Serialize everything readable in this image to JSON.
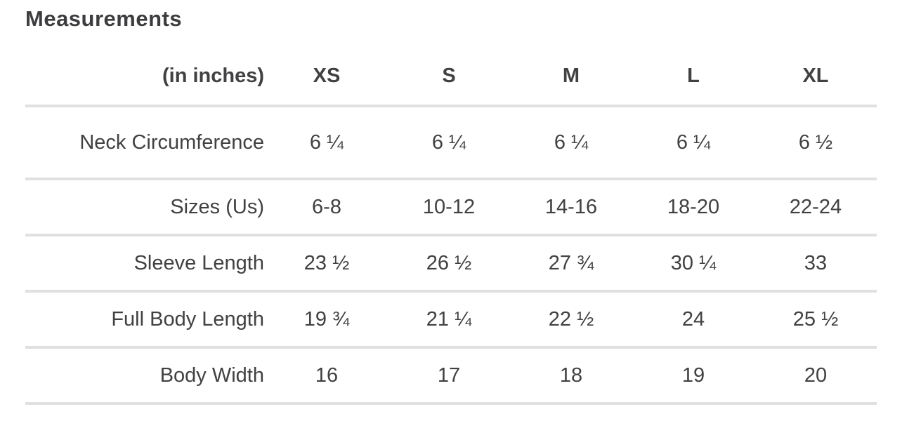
{
  "chart_data": {
    "type": "table",
    "title": "Measurements",
    "unit_label": "(in inches)",
    "columns": [
      "XS",
      "S",
      "M",
      "L",
      "XL"
    ],
    "rows": [
      {
        "label": "Neck Circumference",
        "values": [
          "6 ¼",
          "6 ¼",
          "6 ¼",
          "6 ¼",
          "6 ½"
        ]
      },
      {
        "label": "Sizes (Us)",
        "values": [
          "6-8",
          "10-12",
          "14-16",
          "18-20",
          "22-24"
        ]
      },
      {
        "label": "Sleeve Length",
        "values": [
          "23 ½",
          "26 ½",
          "27 ¾",
          "30 ¼",
          "33"
        ]
      },
      {
        "label": "Full Body Length",
        "values": [
          "19 ¾",
          "21 ¼",
          "22 ½",
          "24",
          "25 ½"
        ]
      },
      {
        "label": "Body Width",
        "values": [
          "16",
          "17",
          "18",
          "19",
          "20"
        ]
      }
    ]
  },
  "colors": {
    "text": "#414042",
    "title_text": "#3d3d3f",
    "divider": "#e0e0e2",
    "background": "#ffffff"
  }
}
